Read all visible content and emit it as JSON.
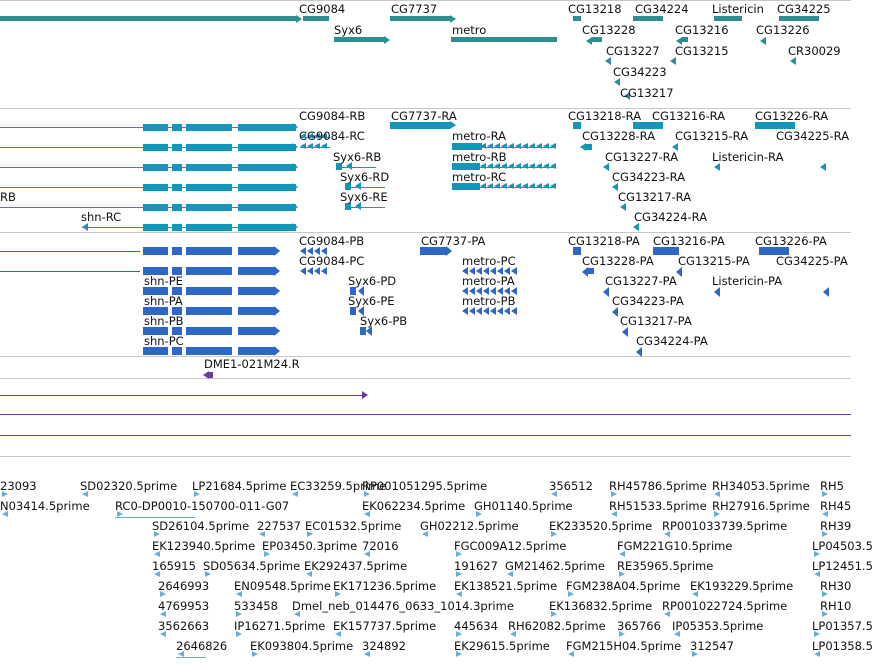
{
  "colors": {
    "gene": "#2e8f92",
    "transcript": "#1596b8",
    "cds": "#2e67c8",
    "clone": "#6a3ea1",
    "est": "#6aaed8",
    "separator": "#c8c8c8"
  },
  "tracks": {
    "genes": {
      "labels": [
        "CG9084",
        "CG7737",
        "Syx6",
        "metro",
        "CG13218",
        "CG34224",
        "Listericin",
        "CG34225",
        "CG13228",
        "CG13216",
        "CG13226",
        "CG13227",
        "CG13215",
        "CR30029",
        "CG34223",
        "CG13217"
      ]
    },
    "transcripts": {
      "labels": [
        "CG9084-RB",
        "CG7737-RA",
        "CG13218-RA",
        "CG13216-RA",
        "CG13226-RA",
        "CG9084-RC",
        "metro-RA",
        "CG13228-RA",
        "CG13215-RA",
        "CG34225-RA",
        "Syx6-RB",
        "metro-RB",
        "CG13227-RA",
        "Listericin-RA",
        "Syx6-RD",
        "metro-RC",
        "CG34223-RA",
        "RB",
        "Syx6-RE",
        "CG13217-RA",
        "shn-RC",
        "CG34224-RA"
      ]
    },
    "cds": {
      "labels": [
        "CG9084-PB",
        "CG7737-PA",
        "CG13218-PA",
        "CG13216-PA",
        "CG13226-PA",
        "CG9084-PC",
        "metro-PC",
        "CG13228-PA",
        "CG13215-PA",
        "CG34225-PA",
        "shn-PE",
        "Syx6-PD",
        "metro-PA",
        "CG13227-PA",
        "Listericin-PA",
        "shn-PA",
        "Syx6-PE",
        "metro-PB",
        "CG34223-PA",
        "shn-PB",
        "Syx6-PB",
        "CG13217-PA",
        "shn-PC",
        "CG34224-PA"
      ]
    },
    "clones": {
      "labels": [
        "DME1-021M24.R"
      ]
    },
    "ests": {
      "labels": [
        "23093",
        "SD02320.5prime",
        "LP21684.5prime",
        "EC33259.5prime",
        "RP001051295.5prime",
        "356512",
        "RH45786.5prime",
        "RH34053.5prime",
        "RH5",
        "N03414.5prime",
        "RC0-DP0010-150700-011-G07",
        "EK062234.5prime",
        "GH01140.5prime",
        "RH51533.5prime",
        "RH27916.5prime",
        "RH45",
        "SD26104.5prime",
        "227537",
        "EC01532.5prime",
        "GH02212.5prime",
        "EK233520.5prime",
        "RP001033739.5prime",
        "RH39",
        "EK123940.5prime",
        "EP03450.3prime",
        "72016",
        "FGC009A12.5prime",
        "FGM221G10.5prime",
        "LP04503.5",
        "165915",
        "SD05634.5prime",
        "EK292437.5prime",
        "191627",
        "GM21462.5prime",
        "RE35965.5prime",
        "LP12451.5",
        "2646993",
        "EN09548.5prime",
        "EK171236.5prime",
        "EK138521.5prime",
        "FGM238A04.5prime",
        "EK193229.5prime",
        "RH30",
        "4769953",
        "533458",
        "Dmel_neb_014476_0633_1014.3prime",
        "EK136832.5prime",
        "RP001022724.5prime",
        "RH10",
        "3562663",
        "IP16271.5prime",
        "EK157737.5prime",
        "445634",
        "RH62082.5prime",
        "365766",
        "IP05353.5prime",
        "LP01357.5",
        "2646826",
        "EK093804.5prime",
        "324892",
        "EK29615.5prime",
        "FGM215H04.5prime",
        "312547",
        "LP01358.5"
      ]
    }
  }
}
